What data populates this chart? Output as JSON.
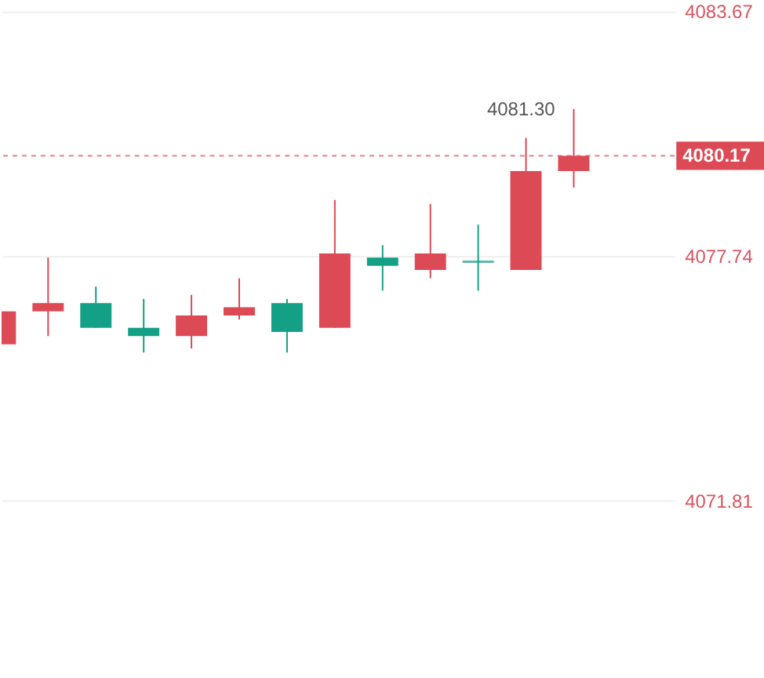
{
  "chart_data": {
    "type": "candlestick",
    "categories": [
      null,
      null,
      null,
      null,
      null,
      null,
      null,
      null,
      null,
      null,
      null,
      null,
      null
    ],
    "ohlc": [
      [
        4075.6,
        4076.4,
        4075.6,
        4076.4
      ],
      [
        4076.4,
        4077.7,
        4075.8,
        4076.6
      ],
      [
        4076.6,
        4077.0,
        4076.0,
        4076.0
      ],
      [
        4076.0,
        4076.7,
        4075.4,
        4075.8
      ],
      [
        4075.8,
        4076.8,
        4075.5,
        4076.3
      ],
      [
        4076.3,
        4077.2,
        4076.2,
        4076.5
      ],
      [
        4076.6,
        4076.7,
        4075.4,
        4075.9
      ],
      [
        4076.0,
        4079.1,
        4076.0,
        4077.8
      ],
      [
        4077.7,
        4078.0,
        4076.9,
        4077.5
      ],
      [
        4077.4,
        4079.0,
        4077.2,
        4077.8
      ],
      [
        4077.6,
        4078.5,
        4076.9,
        4077.6
      ],
      [
        4077.4,
        4080.6,
        4077.4,
        4079.8
      ],
      [
        4079.8,
        4081.3,
        4079.4,
        4080.17
      ]
    ],
    "colors": [
      "#dc4a55",
      "#dc4a55",
      "#13a086",
      "#13a086",
      "#dc4a55",
      "#dc4a55",
      "#13a086",
      "#dc4a55",
      "#13a086",
      "#dc4a55",
      "#13a086",
      "#dc4a55",
      "#dc4a55"
    ],
    "ylim": [
      4067.3,
      4083.7
    ],
    "yticks": [
      4071.81,
      4077.74,
      4083.67
    ],
    "grid": "y",
    "ref_lines": [
      {
        "axis": "y",
        "value": 4080.17,
        "label": "4080.17",
        "color": "#dc4a55",
        "line_style": "dashed"
      }
    ],
    "annotations": [
      "4081.30"
    ]
  }
}
